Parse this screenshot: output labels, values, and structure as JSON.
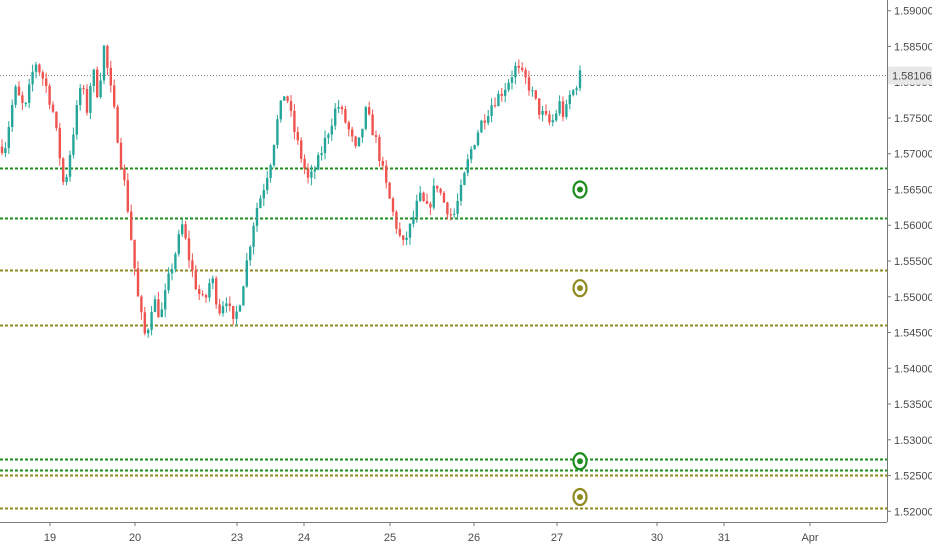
{
  "chart_data": {
    "type": "candlestick",
    "title": "",
    "xlabel": "",
    "ylabel": "",
    "ylim": [
      1.5185,
      1.5915
    ],
    "y_ticks": [
      "1.59000",
      "1.58500",
      "1.58000",
      "1.57500",
      "1.57000",
      "1.56500",
      "1.56000",
      "1.55500",
      "1.55000",
      "1.54500",
      "1.54000",
      "1.53500",
      "1.53000",
      "1.52500",
      "1.52000"
    ],
    "x_ticks": [
      "19",
      "20",
      "23",
      "24",
      "25",
      "26",
      "27",
      "30",
      "31",
      "Apr"
    ],
    "last_price": {
      "value": 1.58106,
      "label": "1.58106"
    },
    "colors": {
      "up": "#26a69a",
      "down": "#ef5350",
      "green_level": "#1e8c1e",
      "olive_level": "#8f8a1e"
    },
    "levels": [
      {
        "price": 1.568,
        "color": "green"
      },
      {
        "price": 1.561,
        "color": "green"
      },
      {
        "price": 1.5538,
        "color": "olive"
      },
      {
        "price": 1.546,
        "color": "olive"
      },
      {
        "price": 1.5273,
        "color": "green"
      },
      {
        "price": 1.5258,
        "color": "green"
      },
      {
        "price": 1.5251,
        "color": "olive"
      },
      {
        "price": 1.5204,
        "color": "olive"
      }
    ],
    "markers": [
      {
        "date": "27",
        "price": 1.565,
        "color": "green"
      },
      {
        "date": "27",
        "price": 1.5512,
        "color": "olive"
      },
      {
        "date": "27",
        "price": 1.527,
        "color": "green"
      },
      {
        "date": "27",
        "price": 1.522,
        "color": "olive"
      }
    ],
    "price_path": [
      [
        "18",
        1.571
      ],
      [
        "18",
        1.579
      ],
      [
        "18",
        1.576
      ],
      [
        "18",
        1.583
      ],
      [
        "18",
        1.58
      ],
      [
        "19",
        1.576
      ],
      [
        "19",
        1.571
      ],
      [
        "19",
        1.565
      ],
      [
        "19",
        1.57
      ],
      [
        "19",
        1.575
      ],
      [
        "19",
        1.58
      ],
      [
        "19",
        1.576
      ],
      [
        "19",
        1.582
      ],
      [
        "19",
        1.578
      ],
      [
        "19",
        1.585
      ],
      [
        "19",
        1.58
      ],
      [
        "19",
        1.575
      ],
      [
        "19",
        1.569
      ],
      [
        "19",
        1.564
      ],
      [
        "19",
        1.557
      ],
      [
        "20",
        1.549
      ],
      [
        "20",
        1.544
      ],
      [
        "20",
        1.55
      ],
      [
        "20",
        1.547
      ],
      [
        "20",
        1.552
      ],
      [
        "20",
        1.556
      ],
      [
        "20",
        1.56
      ],
      [
        "20",
        1.555
      ],
      [
        "20",
        1.551
      ],
      [
        "20",
        1.549
      ],
      [
        "20",
        1.553
      ],
      [
        "20",
        1.548
      ],
      [
        "20",
        1.55
      ],
      [
        "20",
        1.546
      ],
      [
        "23",
        1.55
      ],
      [
        "23",
        1.556
      ],
      [
        "23",
        1.562
      ],
      [
        "23",
        1.565
      ],
      [
        "23",
        1.569
      ],
      [
        "23",
        1.575
      ],
      [
        "23",
        1.579
      ],
      [
        "23",
        1.574
      ],
      [
        "23",
        1.57
      ],
      [
        "24",
        1.566
      ],
      [
        "24",
        1.569
      ],
      [
        "24",
        1.573
      ],
      [
        "24",
        1.577
      ],
      [
        "24",
        1.574
      ],
      [
        "24",
        1.57
      ],
      [
        "24",
        1.576
      ],
      [
        "24",
        1.572
      ],
      [
        "24",
        1.566
      ],
      [
        "25",
        1.561
      ],
      [
        "25",
        1.557
      ],
      [
        "25",
        1.56
      ],
      [
        "25",
        1.564
      ],
      [
        "25",
        1.562
      ],
      [
        "25",
        1.566
      ],
      [
        "25",
        1.563
      ],
      [
        "25",
        1.561
      ],
      [
        "25",
        1.565
      ],
      [
        "25",
        1.57
      ],
      [
        "26",
        1.574
      ],
      [
        "26",
        1.577
      ],
      [
        "26",
        1.579
      ],
      [
        "26",
        1.582
      ],
      [
        "26",
        1.58
      ],
      [
        "26",
        1.576
      ],
      [
        "26",
        1.574
      ],
      [
        "27",
        1.577
      ],
      [
        "27",
        1.575
      ],
      [
        "27",
        1.578
      ],
      [
        "27",
        1.579
      ],
      [
        "27",
        1.581
      ]
    ]
  }
}
